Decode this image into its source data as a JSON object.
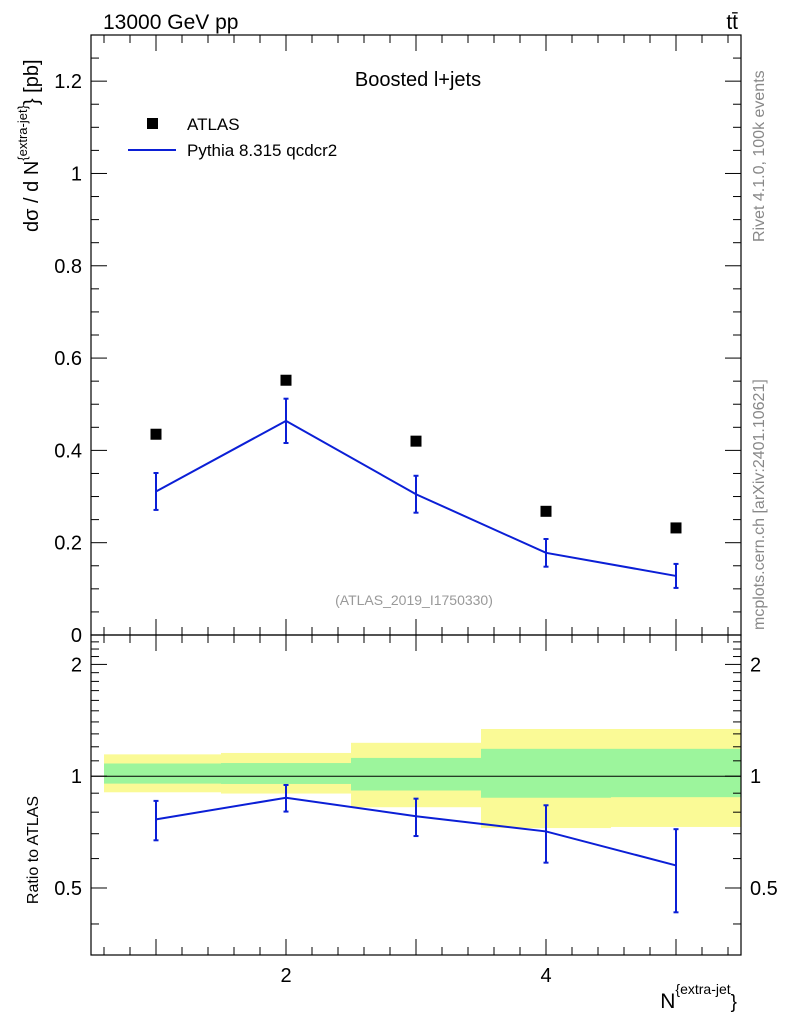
{
  "header": {
    "left": "13000 GeV pp",
    "right": "tt̄"
  },
  "side_labels": {
    "rivet": "Rivet 4.1.0,  100k events",
    "mcplots": "mcplots.cern.ch [arXiv:2401.10621]"
  },
  "chart_data": [
    {
      "type": "line",
      "panel": "main",
      "title": "Boosted l+jets",
      "watermark": "(ATLAS_2019_I1750330)",
      "ylabel": "dσ / d N^{extra-jet} [pb]",
      "ylabel_parts": {
        "pre": "dσ / d N",
        "sup": "{extra-jet}",
        "post": "} [pb]"
      },
      "xlim": [
        0.5,
        5.5
      ],
      "ylim": [
        0,
        1.3
      ],
      "y_ticks": [
        0,
        0.2,
        0.4,
        0.6,
        0.8,
        1,
        1.2
      ],
      "y_tick_labels": [
        "0",
        "0.2",
        "0.4",
        "0.6",
        "0.8",
        "1",
        "1.2"
      ],
      "legend_position": "top-left",
      "series": [
        {
          "name": "ATLAS",
          "kind": "markers",
          "color": "#000000",
          "x": [
            1,
            2,
            3,
            4,
            5
          ],
          "values": [
            0.435,
            0.552,
            0.42,
            0.268,
            0.232
          ]
        },
        {
          "name": "Pythia 8.315 qcdcr2",
          "kind": "line",
          "color": "#0b1fd6",
          "x": [
            1,
            2,
            3,
            4,
            5
          ],
          "values": [
            0.311,
            0.464,
            0.305,
            0.178,
            0.128
          ],
          "err_low": [
            0.04,
            0.048,
            0.04,
            0.03,
            0.026
          ],
          "err_high": [
            0.04,
            0.048,
            0.04,
            0.03,
            0.026
          ]
        }
      ]
    },
    {
      "type": "line",
      "panel": "ratio",
      "ylabel": "Ratio to ATLAS",
      "xlabel": "N^{extra-jet}",
      "xlabel_parts": {
        "pre": "N",
        "sup": "{extra-jet",
        "post": "}"
      },
      "xlim": [
        0.5,
        5.5
      ],
      "ylim": [
        0.33,
        2.4
      ],
      "x_ticks": [
        2,
        4
      ],
      "x_tick_labels": [
        "2",
        "4"
      ],
      "y_ticks": [
        0.5,
        1,
        2
      ],
      "y_tick_labels": [
        "0.5",
        "1",
        "2"
      ],
      "reference_line": 1,
      "bands": {
        "bins": [
          [
            0.6,
            1.5
          ],
          [
            1.5,
            2.5
          ],
          [
            2.5,
            3.5
          ],
          [
            3.5,
            4.5
          ],
          [
            4.5,
            5.5
          ]
        ],
        "inner_low": [
          0.955,
          0.953,
          0.915,
          0.875,
          0.878
        ],
        "inner_high": [
          1.082,
          1.085,
          1.12,
          1.185,
          1.185
        ],
        "outer_low": [
          0.905,
          0.898,
          0.825,
          0.725,
          0.73
        ],
        "outer_high": [
          1.145,
          1.155,
          1.23,
          1.34,
          1.34
        ],
        "inner_color": "#9cf59c",
        "outer_color": "#fafa96"
      },
      "series": [
        {
          "name": "Pythia 8.315 qcdcr2",
          "color": "#0b1fd6",
          "x": [
            1,
            2,
            3,
            4,
            5
          ],
          "values": [
            0.765,
            0.875,
            0.78,
            0.71,
            0.575
          ],
          "err_low": [
            0.093,
            0.072,
            0.09,
            0.125,
            0.145
          ],
          "err_high": [
            0.093,
            0.072,
            0.09,
            0.125,
            0.145
          ]
        }
      ]
    }
  ]
}
